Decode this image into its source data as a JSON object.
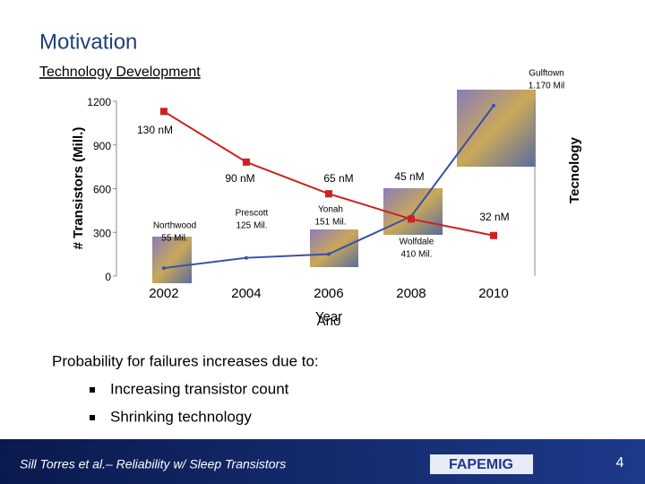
{
  "slide": {
    "title": "Motivation",
    "subtitle": "Technology Development",
    "intro": "Probability for failures increases due to:",
    "bullets": [
      "Increasing transistor count",
      "Shrinking technology"
    ],
    "footer": "Sill Torres et al.– Reliability w/ Sleep Transistors",
    "logo": "FAPEMIG",
    "page_number": "4"
  },
  "chart_data": {
    "type": "line",
    "x": [
      2002,
      2004,
      2006,
      2008,
      2010
    ],
    "xlim": [
      2000.85,
      2011
    ],
    "xticks": [
      2002,
      2004,
      2006,
      2008,
      2010
    ],
    "x_label": "Year",
    "x_label_alt": "Ano",
    "y_label": "# Transistors (Mill.)",
    "y2_label": "Tecnology",
    "ylim": [
      0,
      1200
    ],
    "yticks": [
      0,
      300,
      600,
      900,
      1200
    ],
    "y2lim": [
      0,
      138
    ],
    "series": [
      {
        "color": "#3a4fa8",
        "values": [
          55,
          125,
          151,
          410,
          1170
        ],
        "point_labels": [
          "Northwood",
          "Prescott",
          "Yonah",
          "Wolfdale",
          "Gulftown"
        ],
        "value_labels": [
          "55 Mil.",
          "125 Mil.",
          "151 Mil.",
          "410 Mil.",
          "1.170 Mil"
        ]
      },
      {
        "color": "#cc2222",
        "axis": "y2",
        "marker": "square",
        "values": [
          130,
          90,
          65,
          45,
          32
        ],
        "value_labels": [
          "130 nM",
          "90 nM",
          "65 nM",
          "45 nM",
          "32 nM"
        ]
      }
    ]
  }
}
